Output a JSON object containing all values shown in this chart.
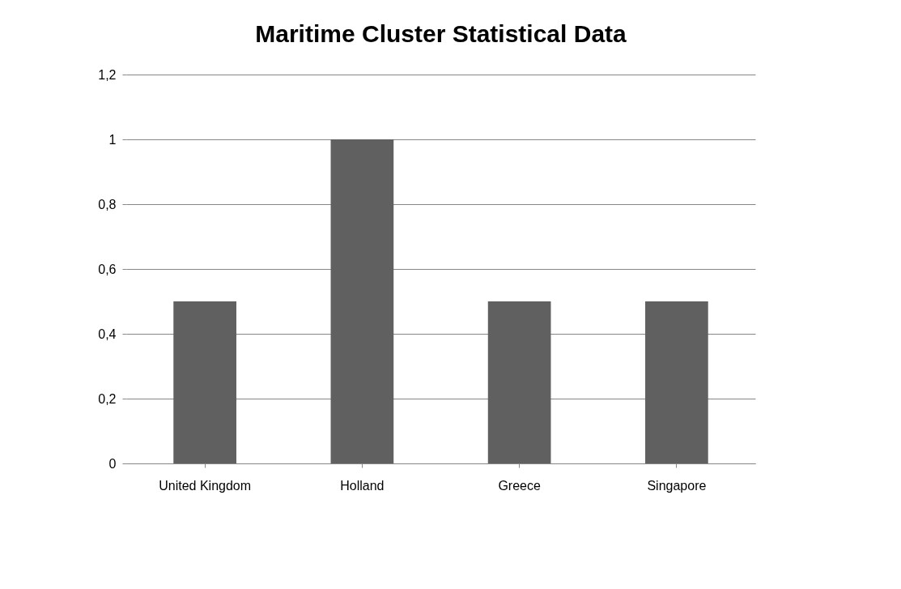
{
  "chart_data": {
    "type": "bar",
    "title": "Maritime Cluster Statistical Data",
    "categories": [
      "United Kingdom",
      "Holland",
      "Greece",
      "Singapore"
    ],
    "values": [
      0.5,
      1,
      0.5,
      0.5
    ],
    "color": "#606060",
    "ylim": [
      0,
      1.2
    ],
    "yticks": [
      0,
      {
        "value": 0.2,
        "label": "0,2"
      },
      {
        "value": 0.4,
        "label": "0,4"
      },
      {
        "value": 0.6,
        "label": "0,6"
      },
      {
        "value": 0.8,
        "label": "0,8"
      },
      1,
      {
        "value": 1.2,
        "label": "1,2"
      }
    ],
    "grid": "y"
  }
}
